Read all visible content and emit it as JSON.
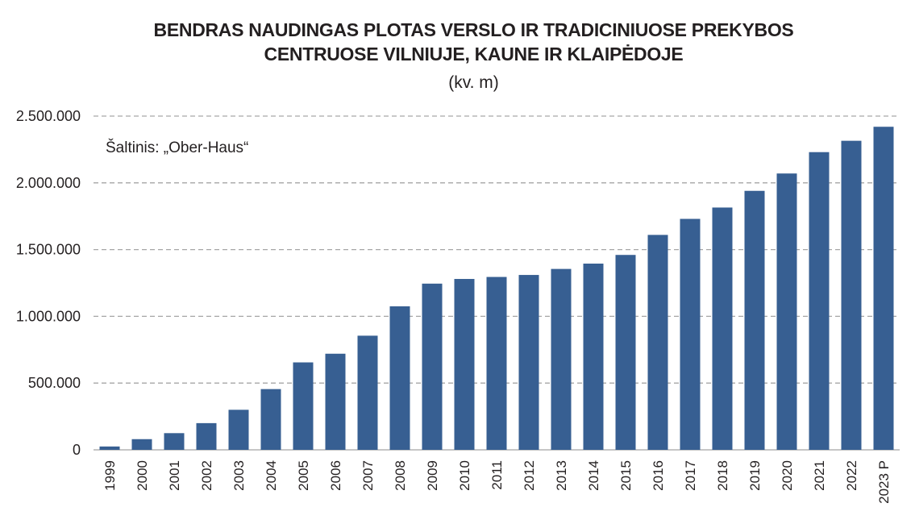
{
  "chart_data": {
    "type": "bar",
    "title_line1": "BENDRAS NAUDINGAS PLOTAS VERSLO IR TRADICINIUOSE PREKYBOS",
    "title_line2": "CENTRUOSE VILNIUJE, KAUNE IR KLAIPĖDOJE",
    "subtitle": "(kv. m)",
    "source": "Šaltinis: „Ober-Haus“",
    "categories": [
      "1999",
      "2000",
      "2001",
      "2002",
      "2003",
      "2004",
      "2005",
      "2006",
      "2007",
      "2008",
      "2009",
      "2010",
      "2011",
      "2012",
      "2013",
      "2014",
      "2015",
      "2016",
      "2017",
      "2018",
      "2019",
      "2020",
      "2021",
      "2022",
      "2023 P"
    ],
    "values": [
      25000,
      80000,
      125000,
      200000,
      300000,
      455000,
      655000,
      720000,
      855000,
      1075000,
      1245000,
      1280000,
      1295000,
      1310000,
      1355000,
      1395000,
      1460000,
      1610000,
      1730000,
      1815000,
      1940000,
      2070000,
      2230000,
      2315000,
      2420000
    ],
    "ylim": [
      0,
      2500000
    ],
    "yticks": [
      0,
      500000,
      1000000,
      1500000,
      2000000,
      2500000
    ],
    "ytick_labels": [
      "0",
      "500.000",
      "1.000.000",
      "1.500.000",
      "2.000.000",
      "2.500.000"
    ],
    "grid": true,
    "bar_color": "#375f92",
    "grid_color": "#a6a6a6"
  }
}
